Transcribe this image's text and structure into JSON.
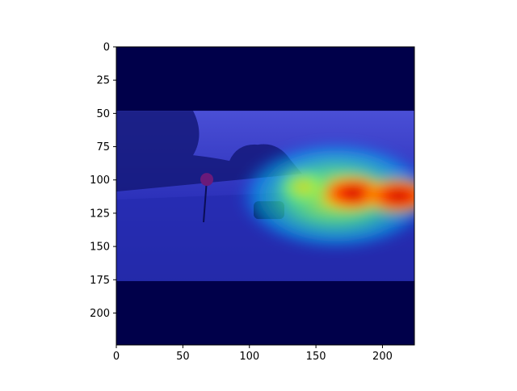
{
  "chart_data": {
    "type": "heatmap",
    "title": "",
    "xlabel": "",
    "ylabel": "",
    "xlim": [
      0,
      224
    ],
    "ylim": [
      224,
      0
    ],
    "x_ticks": [
      0,
      50,
      100,
      150,
      200
    ],
    "y_ticks": [
      0,
      25,
      50,
      75,
      100,
      125,
      150,
      175,
      200
    ],
    "image_band_y": [
      48,
      176
    ],
    "padding_color": "#00004a",
    "colormap": "jet",
    "hotspots": [
      {
        "x": 178,
        "y": 110,
        "intensity": 1.0
      },
      {
        "x": 212,
        "y": 112,
        "intensity": 0.9
      },
      {
        "x": 140,
        "y": 105,
        "intensity": 0.45
      }
    ]
  }
}
